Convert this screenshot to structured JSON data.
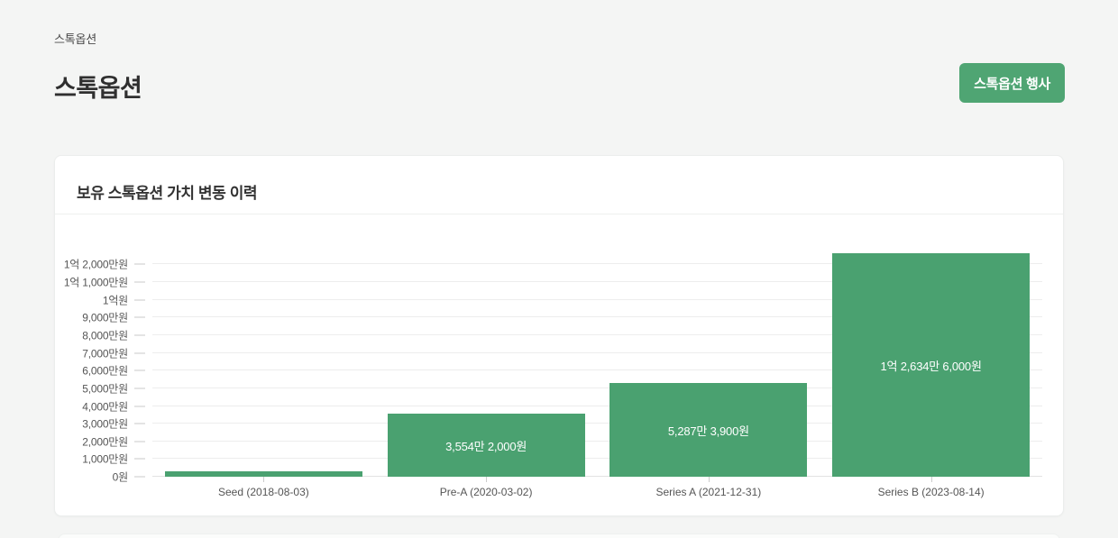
{
  "breadcrumb": "스톡옵션",
  "header": {
    "title": "스톡옵션",
    "action_button_label": "스톡옵션 행사"
  },
  "card": {
    "title": "보유 스톡옵션 가치 변동 이력"
  },
  "colors": {
    "accent_green": "#4fa573",
    "bar_green": "#4aa170",
    "gridline": "#ededed",
    "axis_text": "#555555",
    "page_background": "#f4f5f4"
  },
  "chart_data": {
    "type": "bar",
    "title": "보유 스톡옵션 가치 변동 이력",
    "xlabel": "",
    "ylabel": "",
    "categories": [
      "Seed (2018-08-03)",
      "Pre-A (2020-03-02)",
      "Series A (2021-12-31)",
      "Series B (2023-08-14)"
    ],
    "values": [
      3200000,
      35542000,
      52873900,
      126346000
    ],
    "bar_labels": [
      "",
      "3,554만 2,000원",
      "5,287만 3,900원",
      "1억 2,634만 6,000원"
    ],
    "ymax": 126346000,
    "grid": true,
    "legend": "none",
    "y_ticks": [
      {
        "value": 0,
        "label": "0원"
      },
      {
        "value": 10000000,
        "label": "1,000만원"
      },
      {
        "value": 20000000,
        "label": "2,000만원"
      },
      {
        "value": 30000000,
        "label": "3,000만원"
      },
      {
        "value": 40000000,
        "label": "4,000만원"
      },
      {
        "value": 50000000,
        "label": "5,000만원"
      },
      {
        "value": 60000000,
        "label": "6,000만원"
      },
      {
        "value": 70000000,
        "label": "7,000만원"
      },
      {
        "value": 80000000,
        "label": "8,000만원"
      },
      {
        "value": 90000000,
        "label": "9,000만원"
      },
      {
        "value": 100000000,
        "label": "1억원"
      },
      {
        "value": 110000000,
        "label": "1억 1,000만원"
      },
      {
        "value": 120000000,
        "label": "1억 2,000만원"
      }
    ]
  }
}
